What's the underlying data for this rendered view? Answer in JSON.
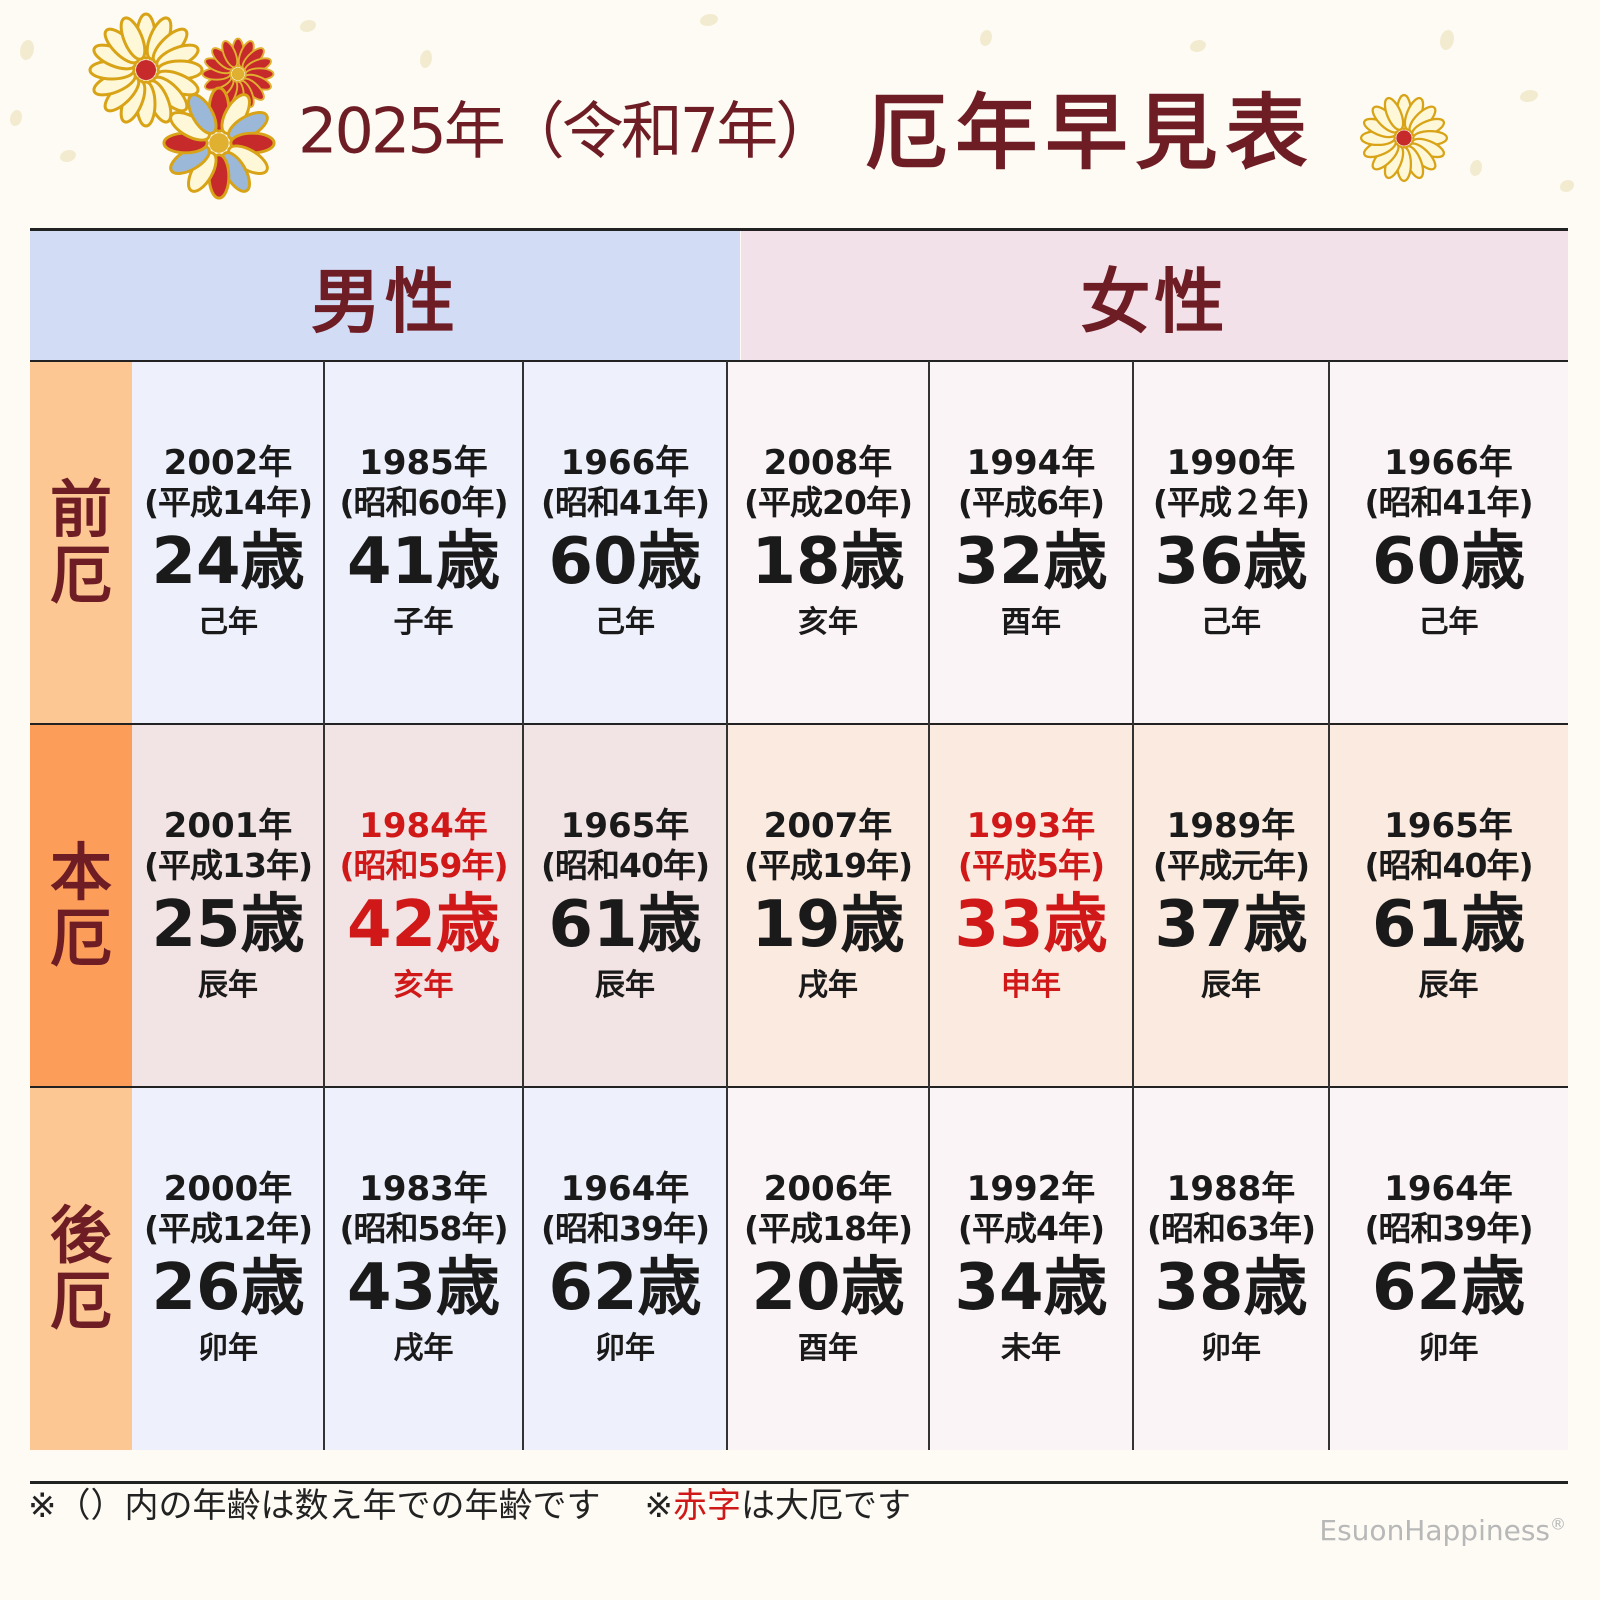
{
  "title": {
    "sub": "2025年（令和7年）",
    "main": "厄年早見表"
  },
  "headers": {
    "male": "男性",
    "female": "女性"
  },
  "rows": [
    {
      "label": [
        "前",
        "厄"
      ],
      "cells": [
        {
          "year": "2002年",
          "era": "(平成14年)",
          "age": "24歳",
          "zodiac": "己年"
        },
        {
          "year": "1985年",
          "era": "(昭和60年)",
          "age": "41歳",
          "zodiac": "子年"
        },
        {
          "year": "1966年",
          "era": "(昭和41年)",
          "age": "60歳",
          "zodiac": "己年"
        },
        {
          "year": "2008年",
          "era": "(平成20年)",
          "age": "18歳",
          "zodiac": "亥年"
        },
        {
          "year": "1994年",
          "era": "(平成6年)",
          "age": "32歳",
          "zodiac": "酉年"
        },
        {
          "year": "1990年",
          "era": "(平成２年)",
          "age": "36歳",
          "zodiac": "己年"
        },
        {
          "year": "1966年",
          "era": "(昭和41年)",
          "age": "60歳",
          "zodiac": "己年"
        }
      ]
    },
    {
      "label": [
        "本",
        "厄"
      ],
      "cells": [
        {
          "year": "2001年",
          "era": "(平成13年)",
          "age": "25歳",
          "zodiac": "辰年"
        },
        {
          "year": "1984年",
          "era": "(昭和59年)",
          "age": "42歳",
          "zodiac": "亥年",
          "taiyaku": true
        },
        {
          "year": "1965年",
          "era": "(昭和40年)",
          "age": "61歳",
          "zodiac": "辰年"
        },
        {
          "year": "2007年",
          "era": "(平成19年)",
          "age": "19歳",
          "zodiac": "戌年"
        },
        {
          "year": "1993年",
          "era": "(平成5年)",
          "age": "33歳",
          "zodiac": "申年",
          "taiyaku": true
        },
        {
          "year": "1989年",
          "era": "(平成元年)",
          "age": "37歳",
          "zodiac": "辰年"
        },
        {
          "year": "1965年",
          "era": "(昭和40年)",
          "age": "61歳",
          "zodiac": "辰年"
        }
      ]
    },
    {
      "label": [
        "後",
        "厄"
      ],
      "cells": [
        {
          "year": "2000年",
          "era": "(平成12年)",
          "age": "26歳",
          "zodiac": "卯年"
        },
        {
          "year": "1983年",
          "era": "(昭和58年)",
          "age": "43歳",
          "zodiac": "戌年"
        },
        {
          "year": "1964年",
          "era": "(昭和39年)",
          "age": "62歳",
          "zodiac": "卯年"
        },
        {
          "year": "2006年",
          "era": "(平成18年)",
          "age": "20歳",
          "zodiac": "酉年"
        },
        {
          "year": "1992年",
          "era": "(平成4年)",
          "age": "34歳",
          "zodiac": "未年"
        },
        {
          "year": "1988年",
          "era": "(昭和63年)",
          "age": "38歳",
          "zodiac": "卯年"
        },
        {
          "year": "1964年",
          "era": "(昭和39年)",
          "age": "62歳",
          "zodiac": "卯年"
        }
      ]
    }
  ],
  "footnote": {
    "part1": "※（）内の年齢は数え年での年齢です",
    "part2": "※",
    "red": "赤字",
    "part3": "は大厄です"
  },
  "credit": {
    "text": "EsuonHappiness",
    "mark": "®"
  },
  "colors": {
    "title": "#6e1d25",
    "taiyaku_red": "#d01818",
    "male_header": "#d3dcf5",
    "female_header": "#f3e1ea",
    "label_zen": "#fcc792",
    "label_hon": "#fd9d5a",
    "label_go": "#fcc792",
    "male_light": "#eef1fb",
    "female_light": "#fbf4f6",
    "male_hon": "#f2e4e4",
    "female_hon": "#faeadf"
  }
}
